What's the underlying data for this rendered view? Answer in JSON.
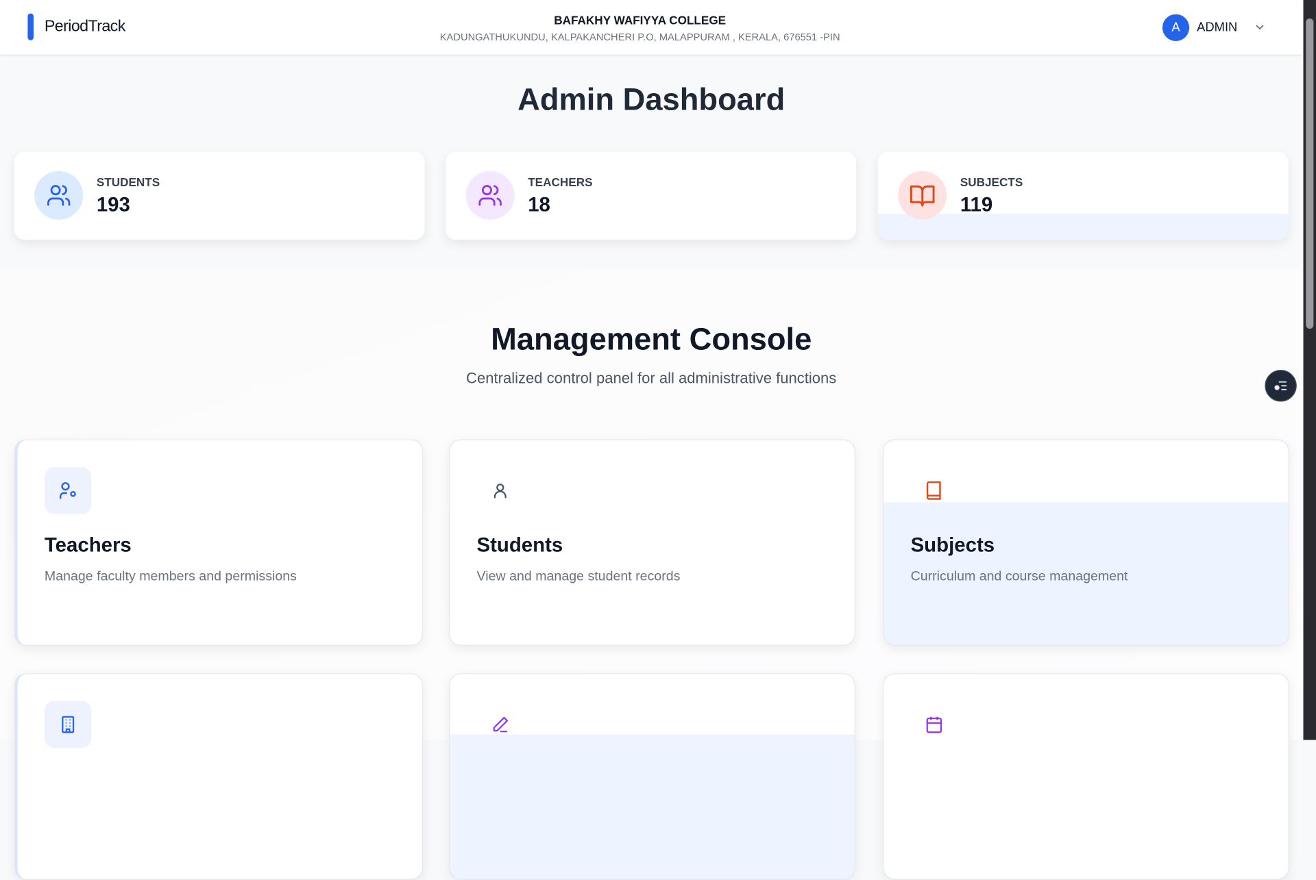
{
  "header": {
    "brand": "PeriodTrack",
    "college_name": "BAFAKHY WAFIYYA COLLEGE",
    "college_address": "KADUNGATHUKUNDU, KALPAKANCHERI P.O, MALAPPURAM , KERALA, 676551 -PIN",
    "user_initial": "A",
    "user_name": "ADMIN",
    "accent": "#2563eb"
  },
  "dashboard": {
    "title": "Admin Dashboard",
    "stats": [
      {
        "label": "STUDENTS",
        "value": "193",
        "icon": "users-icon",
        "color": "#2563eb"
      },
      {
        "label": "TEACHERS",
        "value": "18",
        "icon": "users-icon",
        "color": "#9333ea"
      },
      {
        "label": "SUBJECTS",
        "value": "119",
        "icon": "book-open-icon",
        "color": "#dc4a1a"
      }
    ]
  },
  "console": {
    "title": "Management Console",
    "subtitle": "Centralized control panel for all administrative functions",
    "cards": [
      {
        "title": "Teachers",
        "description": "Manage faculty members and permissions",
        "icon": "user-cog-icon"
      },
      {
        "title": "Students",
        "description": "View and manage student records",
        "icon": "user-icon"
      },
      {
        "title": "Subjects",
        "description": "Curriculum and course management",
        "icon": "book-icon"
      },
      {
        "icon": "building-icon"
      },
      {
        "icon": "pen-icon"
      },
      {
        "icon": "calendar-icon"
      }
    ]
  }
}
